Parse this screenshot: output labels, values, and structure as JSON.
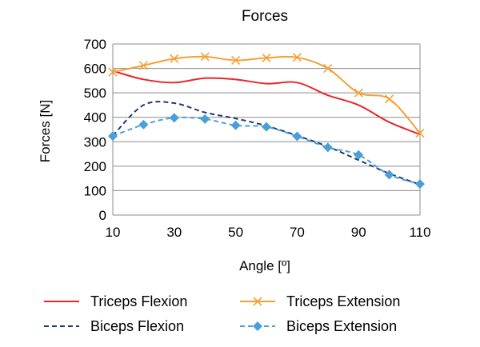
{
  "chart_data": {
    "type": "line",
    "title": "Forces",
    "xlabel": "Angle [º]",
    "ylabel": "Forces [N]",
    "x": [
      10,
      20,
      30,
      40,
      50,
      60,
      70,
      80,
      90,
      100,
      110
    ],
    "xticks": [
      10,
      30,
      50,
      70,
      90,
      110
    ],
    "xlim": [
      10,
      110
    ],
    "yticks": [
      0,
      100,
      200,
      300,
      400,
      500,
      600,
      700
    ],
    "ylim": [
      0,
      700
    ],
    "grid": "horizontal",
    "legend_position": "bottom",
    "series": [
      {
        "name": "Triceps Flexion",
        "color": "#e8262b",
        "style": "solid",
        "marker": "none",
        "values": [
          590,
          555,
          542,
          560,
          555,
          538,
          542,
          490,
          450,
          380,
          330
        ]
      },
      {
        "name": "Triceps Extension",
        "color": "#f5a033",
        "style": "solid",
        "marker": "x",
        "values": [
          585,
          612,
          640,
          648,
          633,
          643,
          645,
          600,
          500,
          475,
          335
        ]
      },
      {
        "name": "Biceps Flexion",
        "color": "#1f3a70",
        "style": "dashed",
        "marker": "none",
        "values": [
          325,
          450,
          458,
          420,
          395,
          365,
          325,
          280,
          225,
          170,
          125
        ]
      },
      {
        "name": "Biceps Extension",
        "color": "#4a9fd8",
        "style": "dashed",
        "marker": "diamond",
        "values": [
          323,
          370,
          398,
          393,
          367,
          361,
          322,
          277,
          246,
          165,
          127
        ]
      }
    ]
  }
}
